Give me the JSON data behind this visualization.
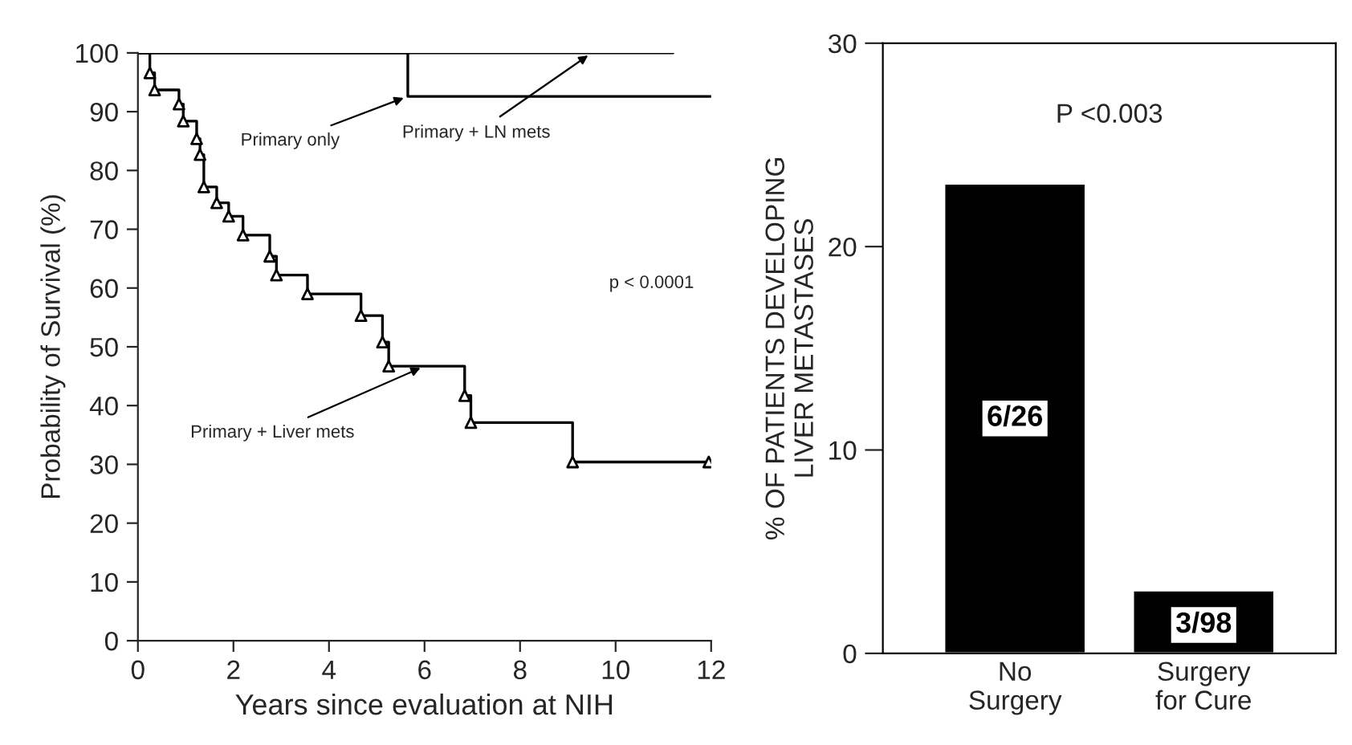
{
  "chart_data": [
    {
      "type": "step",
      "xlabel": "Years since evaluation at NIH",
      "ylabel": "Probability of Survival (%)",
      "xlim": [
        0,
        12
      ],
      "ylim": [
        0,
        100
      ],
      "xticks": [
        0,
        2,
        4,
        6,
        8,
        10,
        12
      ],
      "yticks": [
        0,
        10,
        20,
        30,
        40,
        50,
        60,
        70,
        80,
        90,
        100
      ],
      "grid": false,
      "legend": false,
      "series": [
        {
          "color": "#000000",
          "x": [
            0,
            11.2
          ],
          "values": [
            100,
            100
          ]
        },
        {
          "color": "#000000",
          "x": [
            0,
            5.65,
            12
          ],
          "values": [
            100,
            92.6,
            92.6
          ]
        },
        {
          "color": "#000000",
          "marker": "triangle",
          "x": [
            0,
            0.25,
            0.35,
            0.86,
            0.95,
            1.23,
            1.3,
            1.38,
            1.65,
            1.9,
            2.2,
            2.76,
            2.9,
            3.55,
            4.67,
            5.12,
            5.25,
            6.84,
            6.97,
            9.1,
            11.95
          ],
          "values": [
            100,
            96.6,
            93.7,
            91.3,
            88.4,
            85.4,
            82.7,
            77.2,
            74.5,
            72.2,
            69,
            65.4,
            62.2,
            59,
            55.3,
            50.8,
            46.7,
            41.7,
            37.1,
            30.4,
            30.4
          ]
        }
      ],
      "annotations": [
        {
          "text": "Primary only",
          "x": 5.65,
          "y": 92.6
        },
        {
          "text": "Primary + LN mets",
          "x": 9.5,
          "y": 100
        },
        {
          "text": "Primary + Liver mets",
          "x": 6.0,
          "y": 46.7
        },
        "p < 0.0001"
      ]
    },
    {
      "type": "bar",
      "ylabel": "% OF PATIENTS DEVELOPING\nLIVER METASTASES",
      "categories": [
        "No\nSurgery",
        "Surgery\nfor Cure"
      ],
      "values": [
        23.1,
        3.1
      ],
      "color": "#000000",
      "value_labels": [
        "6/26",
        "3/98"
      ],
      "ylim": [
        0,
        30
      ],
      "yticks": [
        0,
        10,
        20,
        30
      ],
      "grid": false,
      "annotations": [
        "P <0.003"
      ]
    }
  ]
}
